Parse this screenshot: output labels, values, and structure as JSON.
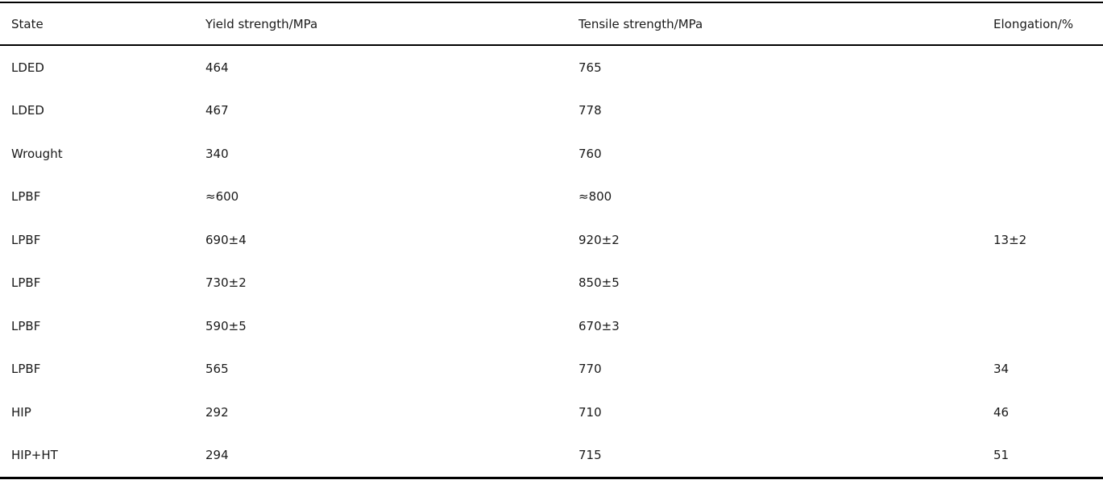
{
  "table": {
    "columns": {
      "state": "State",
      "yield": "Yield strength/MPa",
      "tensile": "Tensile strength/MPa",
      "elongation": "Elongation/%"
    },
    "rows": [
      {
        "state": "LDED",
        "yield": "464",
        "tensile": "765",
        "elongation": ""
      },
      {
        "state": "LDED",
        "yield": "467",
        "tensile": "778",
        "elongation": ""
      },
      {
        "state": "Wrought",
        "yield": "340",
        "tensile": "760",
        "elongation": ""
      },
      {
        "state": "LPBF",
        "yield": "≈600",
        "tensile": "≈800",
        "elongation": ""
      },
      {
        "state": "LPBF",
        "yield": "690±4",
        "tensile": "920±2",
        "elongation": "13±2"
      },
      {
        "state": "LPBF",
        "yield": "730±2",
        "tensile": "850±5",
        "elongation": ""
      },
      {
        "state": "LPBF",
        "yield": "590±5",
        "tensile": "670±3",
        "elongation": ""
      },
      {
        "state": "LPBF",
        "yield": "565",
        "tensile": "770",
        "elongation": "34"
      },
      {
        "state": "HIP",
        "yield": "292",
        "tensile": "710",
        "elongation": "46"
      },
      {
        "state": "HIP+HT",
        "yield": "294",
        "tensile": "715",
        "elongation": "51"
      }
    ]
  },
  "chart_data": {
    "type": "table",
    "title": "",
    "columns": [
      "State",
      "Yield strength/MPa",
      "Tensile strength/MPa",
      "Elongation/%"
    ],
    "rows": [
      [
        "LDED",
        "464",
        "765",
        ""
      ],
      [
        "LDED",
        "467",
        "778",
        ""
      ],
      [
        "Wrought",
        "340",
        "760",
        ""
      ],
      [
        "LPBF",
        "≈600",
        "≈800",
        ""
      ],
      [
        "LPBF",
        "690±4",
        "920±2",
        "13±2"
      ],
      [
        "LPBF",
        "730±2",
        "850±5",
        ""
      ],
      [
        "LPBF",
        "590±5",
        "670±3",
        ""
      ],
      [
        "LPBF",
        "565",
        "770",
        "34"
      ],
      [
        "HIP",
        "292",
        "710",
        "46"
      ],
      [
        "HIP+HT",
        "294",
        "715",
        "51"
      ]
    ]
  },
  "colors": {
    "background": "#ffffff",
    "text": "#1a1a1a",
    "rule": "#000000"
  }
}
